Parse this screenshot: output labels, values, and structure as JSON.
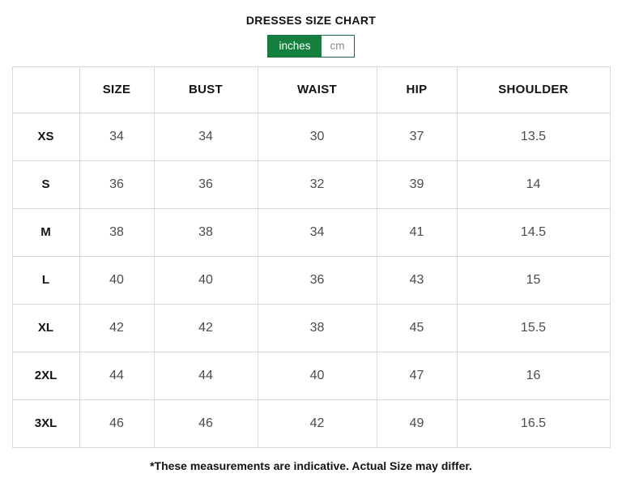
{
  "title": "DRESSES SIZE CHART",
  "unit_toggle": {
    "inches_label": "inches",
    "cm_label": "cm",
    "selected": "inches"
  },
  "table": {
    "headers": [
      "",
      "SIZE",
      "BUST",
      "WAIST",
      "HIP",
      "SHOULDER"
    ],
    "rows": [
      {
        "size": "XS",
        "values": [
          "34",
          "34",
          "30",
          "37",
          "13.5"
        ]
      },
      {
        "size": "S",
        "values": [
          "36",
          "36",
          "32",
          "39",
          "14"
        ]
      },
      {
        "size": "M",
        "values": [
          "38",
          "38",
          "34",
          "41",
          "14.5"
        ]
      },
      {
        "size": "L",
        "values": [
          "40",
          "40",
          "36",
          "43",
          "15"
        ]
      },
      {
        "size": "XL",
        "values": [
          "42",
          "42",
          "38",
          "45",
          "15.5"
        ]
      },
      {
        "size": "2XL",
        "values": [
          "44",
          "44",
          "40",
          "47",
          "16"
        ]
      },
      {
        "size": "3XL",
        "values": [
          "46",
          "46",
          "42",
          "49",
          "16.5"
        ]
      }
    ]
  },
  "footnote": "*These measurements are indicative. Actual Size may differ.",
  "colors": {
    "accent_green": "#15803d",
    "toggle_border_green": "#1b6e3f",
    "inactive_unit_text": "#8a8a8a",
    "table_border": "#d9d9d9",
    "value_text": "#4c4c4c",
    "heading_text": "#121212"
  }
}
